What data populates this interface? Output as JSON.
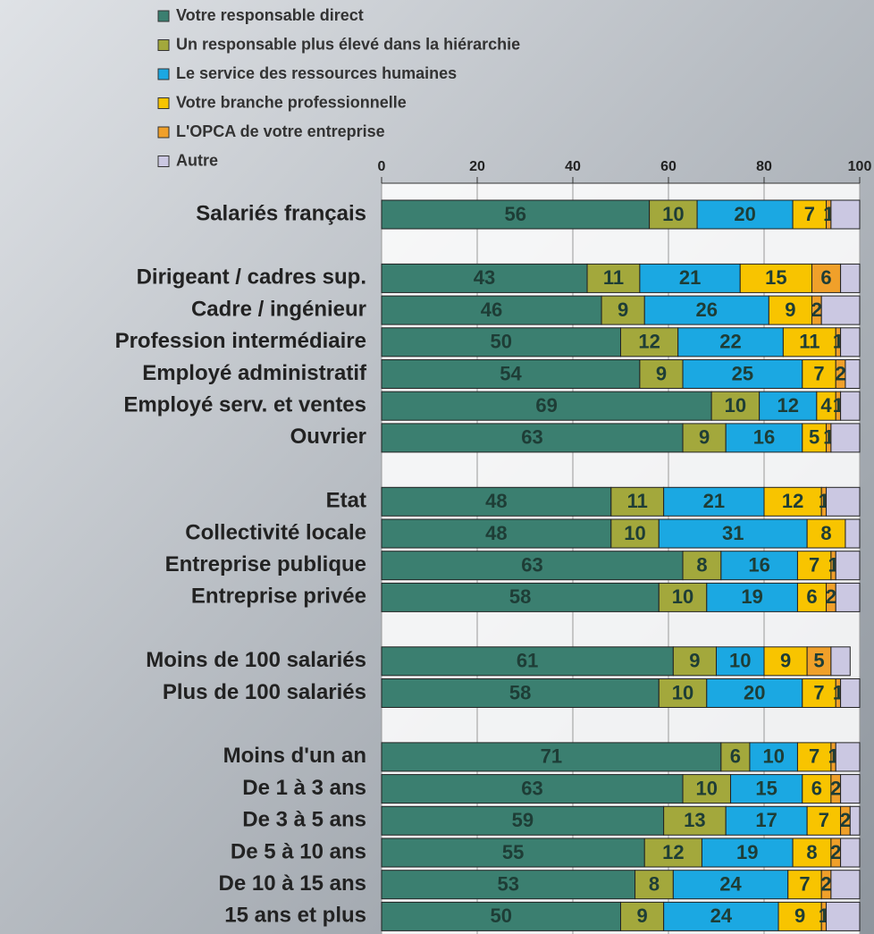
{
  "chart_data": {
    "type": "stacked-bar-horizontal",
    "categories": [
      "Salariés  français",
      null,
      "Dirigeant / cadres sup.",
      "Cadre / ingénieur",
      "Profession intermédiaire",
      "Employé administratif",
      "Employé serv. et ventes",
      "Ouvrier",
      null,
      "Etat",
      "Collectivité locale",
      "Entreprise publique",
      "Entreprise privée",
      null,
      "Moins de 100 salariés",
      "Plus de 100 salariés",
      null,
      "Moins d'un an",
      "De 1 à 3 ans",
      "De 3 à 5 ans",
      "De 5 à 10 ans",
      "De 10 à 15 ans",
      "15 ans et plus"
    ],
    "series": [
      {
        "name": "Votre responsable direct",
        "color": "#3b7f70",
        "values": [
          56,
          null,
          43,
          46,
          50,
          54,
          69,
          63,
          null,
          48,
          48,
          63,
          58,
          null,
          61,
          58,
          null,
          71,
          63,
          59,
          55,
          53,
          50
        ]
      },
      {
        "name": "Un responsable plus élevé dans la hiérarchie",
        "color": "#a3a83c",
        "values": [
          10,
          null,
          11,
          9,
          12,
          9,
          10,
          9,
          null,
          11,
          10,
          8,
          10,
          null,
          9,
          10,
          null,
          6,
          10,
          13,
          12,
          8,
          9
        ]
      },
      {
        "name": "Le service des ressources humaines",
        "color": "#1ba8e2",
        "values": [
          20,
          null,
          21,
          26,
          22,
          25,
          12,
          16,
          null,
          21,
          31,
          16,
          19,
          null,
          10,
          20,
          null,
          10,
          15,
          17,
          19,
          24,
          24
        ]
      },
      {
        "name": "Votre branche professionnelle",
        "color": "#f8c400",
        "values": [
          7,
          null,
          15,
          9,
          11,
          7,
          4,
          5,
          null,
          12,
          8,
          7,
          6,
          null,
          9,
          7,
          null,
          7,
          6,
          7,
          8,
          7,
          9
        ]
      },
      {
        "name": "L'OPCA de votre entreprise",
        "color": "#f0a02a",
        "values": [
          1,
          null,
          6,
          2,
          1,
          2,
          1,
          1,
          null,
          1,
          0,
          1,
          2,
          null,
          5,
          1,
          null,
          1,
          2,
          2,
          2,
          2,
          1
        ]
      },
      {
        "name": "Autre",
        "color": "#cbc8e2",
        "values": [
          6,
          null,
          4,
          8,
          4,
          3,
          4,
          6,
          null,
          7,
          3,
          5,
          5,
          null,
          4,
          4,
          null,
          5,
          4,
          2,
          4,
          6,
          7
        ]
      }
    ],
    "xlim": [
      0,
      100
    ],
    "xticks": [
      0,
      20,
      40,
      60,
      80,
      100
    ],
    "grid": true
  }
}
